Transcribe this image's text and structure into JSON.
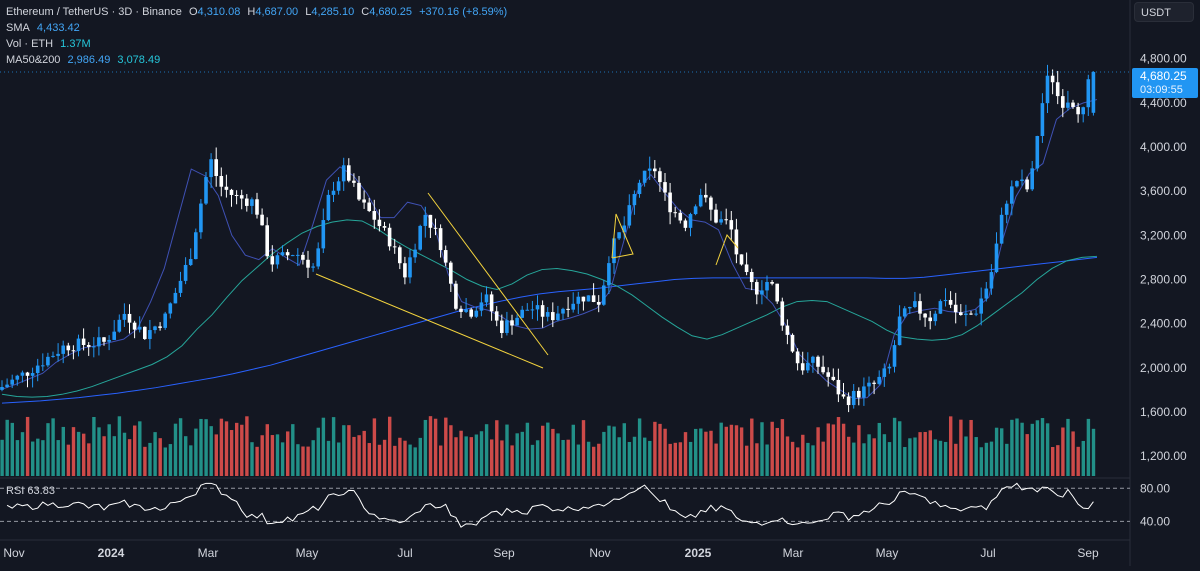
{
  "header": {
    "pair": "Ethereum / TetherUS · 3D · Binance",
    "o_label": "O",
    "o": "4,310.08",
    "h_label": "H",
    "h": "4,687.00",
    "l_label": "L",
    "l": "4,285.10",
    "c_label": "C",
    "c": "4,680.25",
    "change": "+370.16 (+8.59%)",
    "sma_label": "SMA",
    "sma": "4,433.42",
    "vol_label": "Vol · ETH",
    "vol": "1.37M",
    "ma_label": "MA50&200",
    "ma50": "2,986.49",
    "ma200": "3,078.49"
  },
  "currency_button": "USDT",
  "price_badge": {
    "price": "4,680.25",
    "countdown": "03:09:55"
  },
  "rsi": {
    "label": "RSI",
    "value": "63.83"
  },
  "colors": {
    "background": "#131722",
    "up": "#2196f3",
    "down": "#ffffff",
    "vol_up": "#26a69a",
    "vol_down": "#ef5350",
    "sma": "#3f51b5",
    "ma50": "#26a69a",
    "ma200": "#2962ff",
    "trendline": "#f3d33e"
  },
  "chart_data": [
    {
      "type": "candlestick",
      "title": "Ethereum / TetherUS · 3D · Binance",
      "y_axis": {
        "ticks": [
          "4,800.00",
          "4,400.00",
          "4,000.00",
          "3,600.00",
          "3,200.00",
          "2,800.00",
          "2,400.00",
          "2,000.00",
          "1,600.00",
          "1,200.00"
        ],
        "tick_values": [
          4800,
          4400,
          4000,
          3600,
          3200,
          2800,
          2400,
          2000,
          1600,
          1200
        ],
        "range": [
          1020,
          5060
        ],
        "position": "right"
      },
      "x_axis": {
        "ticks": [
          "Nov",
          "2024",
          "Mar",
          "May",
          "Jul",
          "Sep",
          "Nov",
          "2025",
          "Mar",
          "May",
          "Jul",
          "Sep"
        ]
      },
      "series": [
        {
          "name": "SMA",
          "values": [
            1805,
            1850,
            1900,
            1950,
            2050,
            2120,
            2180,
            2200,
            2230,
            2260,
            2350,
            2600,
            2900,
            3350,
            3800,
            3740,
            3560,
            3200,
            3020,
            2980,
            3080,
            3000,
            2930,
            3300,
            3700,
            3820,
            3740,
            3580,
            3360,
            3360,
            3500,
            3470,
            3280,
            2850,
            2600,
            2550,
            2520,
            2460,
            2380,
            2350,
            2360,
            2420,
            2450,
            2490,
            2540,
            2700,
            3150,
            3600,
            3750,
            3590,
            3440,
            3340,
            3320,
            3250,
            2950,
            2720,
            2700,
            2580,
            2380,
            2120,
            2000,
            1880,
            1800,
            1720,
            1730,
            1850,
            2300,
            2490,
            2520,
            2540,
            2510,
            2500,
            2530,
            2640,
            3150,
            3550,
            3760,
            3850,
            4250,
            4350,
            4400,
            4430
          ]
        },
        {
          "name": "MA50",
          "values": [
            1760,
            1740,
            1735,
            1740,
            1760,
            1790,
            1830,
            1880,
            1930,
            1980,
            2030,
            2100,
            2200,
            2350,
            2480,
            2640,
            2790,
            2910,
            3030,
            3130,
            3220,
            3280,
            3320,
            3340,
            3330,
            3260,
            3170,
            3090,
            3020,
            2950,
            2880,
            2800,
            2740,
            2710,
            2760,
            2840,
            2890,
            2900,
            2880,
            2850,
            2800,
            2740,
            2660,
            2560,
            2460,
            2370,
            2290,
            2260,
            2300,
            2360,
            2420,
            2480,
            2550,
            2600,
            2610,
            2600,
            2540,
            2480,
            2420,
            2340,
            2280,
            2260,
            2250,
            2260,
            2300,
            2380,
            2480,
            2580,
            2680,
            2800,
            2900,
            2970,
            3000,
            3010
          ]
        },
        {
          "name": "MA200",
          "values": [
            1680,
            1690,
            1700,
            1715,
            1730,
            1750,
            1770,
            1795,
            1820,
            1850,
            1880,
            1910,
            1945,
            1985,
            2025,
            2075,
            2125,
            2175,
            2225,
            2275,
            2325,
            2375,
            2425,
            2475,
            2525,
            2565,
            2605,
            2640,
            2670,
            2690,
            2705,
            2720,
            2740,
            2760,
            2780,
            2800,
            2810,
            2815,
            2815,
            2815,
            2815,
            2815,
            2815,
            2815,
            2815,
            2815,
            2810,
            2810,
            2820,
            2840,
            2860,
            2880,
            2900,
            2920,
            2940,
            2960,
            2980,
            3000
          ]
        }
      ],
      "annotations": [
        "trendline-wedge",
        "trendline-wedge-upper",
        "small-triangle-nov",
        "small-triangle-jan"
      ]
    },
    {
      "type": "line",
      "name": "RSI",
      "levels": [
        80,
        40
      ],
      "level_labels": [
        "80.00",
        "40.00"
      ],
      "last": 63.83
    }
  ]
}
